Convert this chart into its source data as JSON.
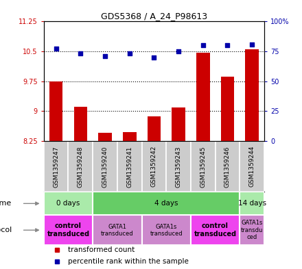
{
  "title": "GDS5368 / A_24_P98613",
  "samples": [
    "GSM1359247",
    "GSM1359248",
    "GSM1359240",
    "GSM1359241",
    "GSM1359242",
    "GSM1359243",
    "GSM1359245",
    "GSM1359246",
    "GSM1359244"
  ],
  "bar_values": [
    9.75,
    9.1,
    8.45,
    8.47,
    8.87,
    9.08,
    10.47,
    9.87,
    10.55
  ],
  "bar_base": 8.25,
  "dot_values": [
    77,
    73,
    71,
    73,
    70,
    75,
    80,
    80,
    81
  ],
  "ylim_left": [
    8.25,
    11.25
  ],
  "ylim_right": [
    0,
    100
  ],
  "yticks_left": [
    8.25,
    9.0,
    9.75,
    10.5,
    11.25
  ],
  "ytick_labels_left": [
    "8.25",
    "9",
    "9.75",
    "10.5",
    "11.25"
  ],
  "yticks_right": [
    0,
    25,
    50,
    75,
    100
  ],
  "ytick_labels_right": [
    "0",
    "25",
    "50",
    "75",
    "100%"
  ],
  "hlines": [
    9.0,
    9.75,
    10.5
  ],
  "bar_color": "#cc0000",
  "dot_color": "#0000aa",
  "bg_color": "#ffffff",
  "sample_panel_bg": "#cccccc",
  "main_plot_bg": "#ffffff",
  "time_groups": [
    {
      "label": "0 days",
      "start": 0,
      "end": 2,
      "color": "#aaeaaa"
    },
    {
      "label": "4 days",
      "start": 2,
      "end": 8,
      "color": "#66cc66"
    },
    {
      "label": "14 days",
      "start": 8,
      "end": 9,
      "color": "#aaeaaa"
    }
  ],
  "protocol_groups": [
    {
      "label": "control\ntransduced",
      "start": 0,
      "end": 2,
      "color": "#ee44ee",
      "bold": true
    },
    {
      "label": "GATA1\ntransduced",
      "start": 2,
      "end": 4,
      "color": "#cc88cc",
      "bold": false
    },
    {
      "label": "GATA1s\ntransduced",
      "start": 4,
      "end": 6,
      "color": "#cc88cc",
      "bold": false
    },
    {
      "label": "control\ntransduced",
      "start": 6,
      "end": 8,
      "color": "#ee44ee",
      "bold": true
    },
    {
      "label": "GATA1s\ntransdu\nced",
      "start": 8,
      "end": 9,
      "color": "#cc88cc",
      "bold": false
    }
  ],
  "legend_items": [
    {
      "label": "transformed count",
      "color": "#cc0000"
    },
    {
      "label": "percentile rank within the sample",
      "color": "#0000aa"
    }
  ]
}
